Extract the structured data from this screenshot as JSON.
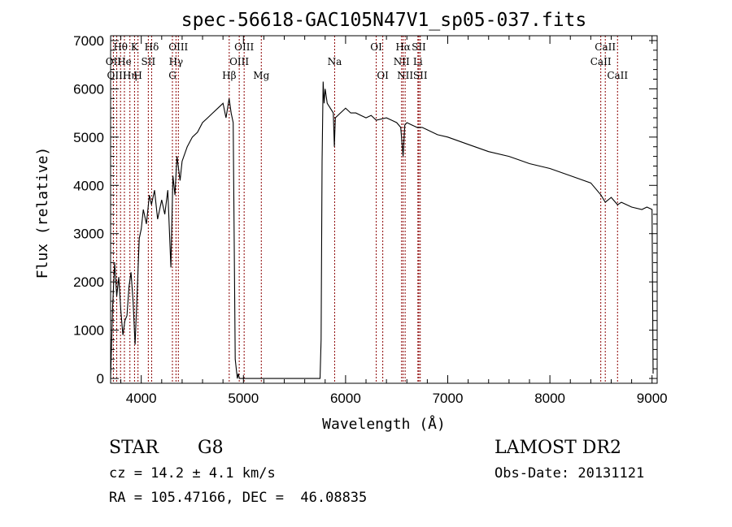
{
  "chart_data": {
    "type": "line",
    "title": "spec-56618-GAC105N47V1_sp05-037.fits",
    "xlabel": "Wavelength (Å)",
    "ylabel": "Flux (relative)",
    "xlim": [
      3700,
      9050
    ],
    "ylim": [
      -100,
      7100
    ],
    "xticks": [
      4000,
      5000,
      6000,
      7000,
      8000,
      9000
    ],
    "xtick_labels": [
      "4000",
      "5000",
      "6000",
      "7000",
      "8000",
      "9000"
    ],
    "yticks": [
      0,
      1000,
      2000,
      3000,
      4000,
      5000,
      6000,
      7000
    ],
    "ytick_labels": [
      "0",
      "1000",
      "2000",
      "3000",
      "4000",
      "5000",
      "6000",
      "7000"
    ],
    "grid": false,
    "line_color": "#000000",
    "line_marker_color": "#8b0000",
    "series": [
      {
        "x": [
          3700,
          3720,
          3740,
          3760,
          3780,
          3800,
          3820,
          3840,
          3860,
          3880,
          3900,
          3920,
          3940,
          3960,
          3980,
          4000,
          4020,
          4050,
          4080,
          4100,
          4130,
          4160,
          4200,
          4230,
          4260,
          4290,
          4310,
          4330,
          4350,
          4380,
          4400,
          4450,
          4500,
          4550,
          4600,
          4650,
          4700,
          4750,
          4800,
          4830,
          4860,
          4880,
          4900,
          4920,
          4940,
          4950,
          4960,
          5750,
          5760,
          5770,
          5780,
          5790,
          5800,
          5820,
          5850,
          5880,
          5890,
          5900,
          5950,
          6000,
          6050,
          6100,
          6150,
          6200,
          6250,
          6300,
          6400,
          6450,
          6500,
          6540,
          6563,
          6580,
          6600,
          6650,
          6700,
          6750,
          6800,
          6900,
          7000,
          7200,
          7400,
          7600,
          7800,
          8000,
          8200,
          8400,
          8500,
          8542,
          8600,
          8662,
          8700,
          8800,
          8900,
          8950,
          9000,
          9010
        ],
        "y": [
          0,
          1500,
          2400,
          1700,
          2100,
          1400,
          900,
          1200,
          1300,
          1900,
          2200,
          1600,
          700,
          1800,
          2900,
          3100,
          3500,
          3200,
          3800,
          3600,
          3900,
          3300,
          3700,
          3400,
          3900,
          2300,
          4200,
          3800,
          4600,
          4100,
          4500,
          4800,
          5000,
          5100,
          5300,
          5400,
          5500,
          5600,
          5700,
          5400,
          5800,
          5500,
          5300,
          400,
          0,
          100,
          0,
          0,
          800,
          4500,
          6150,
          5700,
          6000,
          5700,
          5600,
          5500,
          4800,
          5400,
          5500,
          5600,
          5500,
          5500,
          5450,
          5400,
          5450,
          5350,
          5400,
          5350,
          5300,
          5200,
          4600,
          5250,
          5300,
          5250,
          5200,
          5200,
          5150,
          5050,
          5000,
          4850,
          4700,
          4600,
          4450,
          4350,
          4200,
          4050,
          3800,
          3650,
          3750,
          3600,
          3650,
          3550,
          3500,
          3550,
          3500,
          100
        ]
      }
    ],
    "lines": [
      {
        "label": "Hθ",
        "x": 3797,
        "row": 1
      },
      {
        "label": "OII",
        "x": 3727,
        "row": 2
      },
      {
        "label": "OIII",
        "x": 3760,
        "row": 3
      },
      {
        "label": "He",
        "x": 3835,
        "row": 2
      },
      {
        "label": "Hη",
        "x": 3889,
        "row": 3
      },
      {
        "label": "K",
        "x": 3934,
        "row": 1
      },
      {
        "label": "H",
        "x": 3968,
        "row": 3
      },
      {
        "label": "SII",
        "x": 4069,
        "row": 2
      },
      {
        "label": "Hδ",
        "x": 4102,
        "row": 1
      },
      {
        "label": "G",
        "x": 4305,
        "row": 3
      },
      {
        "label": "Hγ",
        "x": 4340,
        "row": 2
      },
      {
        "label": "OIII",
        "x": 4363,
        "row": 1
      },
      {
        "label": "Hβ",
        "x": 4861,
        "row": 3
      },
      {
        "label": "OIII",
        "x": 4959,
        "row": 2
      },
      {
        "label": "OIII",
        "x": 5007,
        "row": 1
      },
      {
        "label": "Mg",
        "x": 5175,
        "row": 3
      },
      {
        "label": "Na",
        "x": 5893,
        "row": 2
      },
      {
        "label": "OI",
        "x": 6300,
        "row": 1
      },
      {
        "label": "OI",
        "x": 6364,
        "row": 3
      },
      {
        "label": "NII",
        "x": 6548,
        "row": 2
      },
      {
        "label": "Hα",
        "x": 6563,
        "row": 1
      },
      {
        "label": "NII",
        "x": 6583,
        "row": 3
      },
      {
        "label": "Li",
        "x": 6708,
        "row": 2
      },
      {
        "label": "SII",
        "x": 6717,
        "row": 1
      },
      {
        "label": "SII",
        "x": 6731,
        "row": 3
      },
      {
        "label": "CaII",
        "x": 8498,
        "row": 2
      },
      {
        "label": "CaII",
        "x": 8542,
        "row": 1
      },
      {
        "label": "CaII",
        "x": 8662,
        "row": 3
      }
    ]
  },
  "info": {
    "class_label": "STAR",
    "subclass_label": "G8",
    "survey_label": "LAMOST DR2",
    "cz_text": "cz = 14.2 ± 4.1 km/s",
    "obs_date_text": "Obs-Date: 20131121",
    "coord_text": "RA = 105.47166, DEC =  46.08835"
  }
}
